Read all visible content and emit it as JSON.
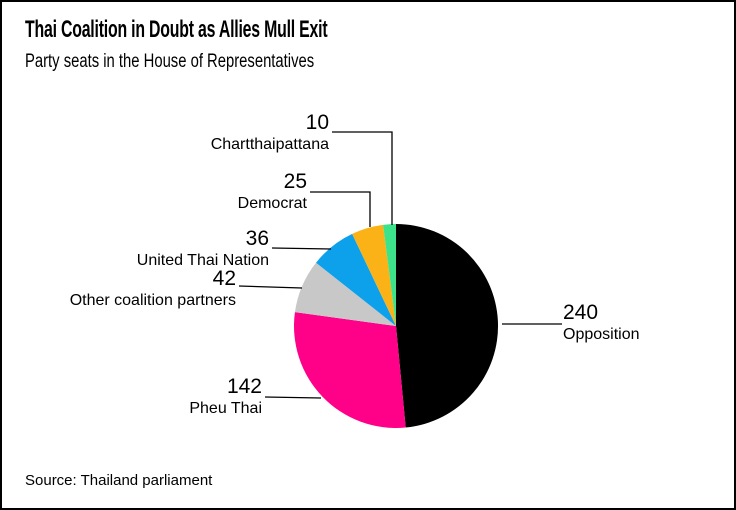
{
  "chart_data": {
    "type": "pie",
    "title": "Thai Coalition in Doubt as Allies Mull Exit",
    "subtitle": "Party seats in the House of Representatives",
    "source": "Source: Thailand parliament",
    "direction": "clockwise",
    "start_angle_deg": 0,
    "legend": "none (direct callout labels with leader lines)",
    "slices": [
      {
        "label": "Opposition",
        "value": 240,
        "color": "#000000"
      },
      {
        "label": "Pheu Thai",
        "value": 142,
        "color": "#ff0088"
      },
      {
        "label": "Other coalition partners",
        "value": 42,
        "color": "#c8c8c8"
      },
      {
        "label": "United Thai Nation",
        "value": 36,
        "color": "#0da0eb"
      },
      {
        "label": "Democrat",
        "value": 25,
        "color": "#fbb216"
      },
      {
        "label": "Chartthaipattana",
        "value": 10,
        "color": "#3de38a"
      }
    ]
  }
}
